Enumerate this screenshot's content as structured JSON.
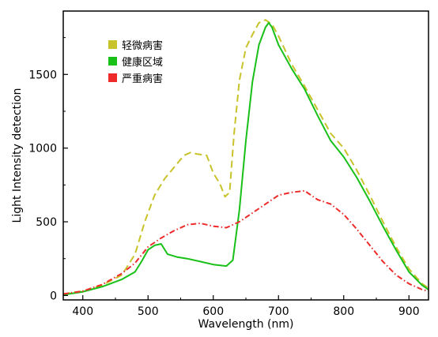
{
  "chart_data": {
    "type": "line",
    "xlabel": "Wavelength (nm)",
    "ylabel": "Light Intensity detection",
    "xlim": [
      370,
      930
    ],
    "ylim": [
      -30,
      1930
    ],
    "xticks": [
      400,
      500,
      600,
      700,
      800,
      900
    ],
    "yticks": [
      0,
      500,
      1000,
      1500
    ],
    "grid": false,
    "legend": "top-left",
    "series": [
      {
        "name": "轻微病害",
        "color": "#c8c32a",
        "dash": "dashed",
        "x": [
          370,
          400,
          430,
          460,
          480,
          495,
          510,
          525,
          540,
          555,
          565,
          575,
          590,
          600,
          610,
          618,
          625,
          632,
          640,
          650,
          660,
          670,
          680,
          690,
          700,
          720,
          740,
          760,
          780,
          800,
          820,
          840,
          860,
          880,
          900,
          920,
          930
        ],
        "y": [
          10,
          30,
          70,
          140,
          280,
          500,
          680,
          790,
          870,
          950,
          970,
          960,
          950,
          830,
          760,
          670,
          700,
          1100,
          1460,
          1680,
          1770,
          1850,
          1870,
          1840,
          1760,
          1570,
          1420,
          1260,
          1100,
          1000,
          850,
          680,
          500,
          330,
          180,
          80,
          50
        ]
      },
      {
        "name": "健康区域",
        "color": "#18c018",
        "dash": "solid",
        "x": [
          370,
          400,
          430,
          460,
          480,
          490,
          500,
          510,
          520,
          530,
          545,
          560,
          580,
          600,
          620,
          630,
          640,
          650,
          660,
          670,
          680,
          685,
          690,
          700,
          720,
          740,
          760,
          780,
          800,
          820,
          840,
          860,
          880,
          900,
          920,
          930
        ],
        "y": [
          5,
          25,
          60,
          110,
          160,
          230,
          310,
          340,
          350,
          280,
          260,
          250,
          230,
          210,
          200,
          240,
          580,
          1050,
          1450,
          1700,
          1820,
          1850,
          1820,
          1700,
          1540,
          1400,
          1220,
          1050,
          940,
          800,
          640,
          470,
          310,
          160,
          70,
          40
        ]
      },
      {
        "name": "严重病害",
        "color": "#ee2a2a",
        "dash": "dashdot",
        "x": [
          370,
          400,
          430,
          460,
          480,
          500,
          520,
          540,
          560,
          580,
          600,
          620,
          640,
          660,
          680,
          700,
          720,
          740,
          760,
          780,
          800,
          820,
          840,
          860,
          880,
          900,
          920,
          930
        ],
        "y": [
          10,
          30,
          75,
          150,
          220,
          330,
          390,
          440,
          480,
          490,
          470,
          460,
          500,
          560,
          620,
          680,
          700,
          710,
          650,
          620,
          550,
          450,
          340,
          230,
          140,
          80,
          40,
          30
        ]
      }
    ]
  }
}
